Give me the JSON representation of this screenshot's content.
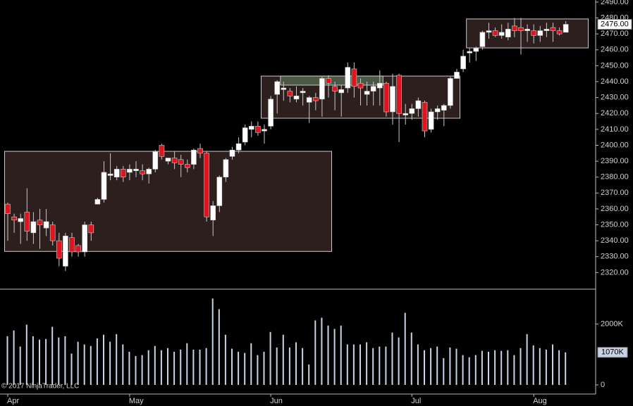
{
  "chart_data": {
    "type": "candlestick",
    "copyright": "© 2017 NinjaTrader, LLC",
    "categories": [
      "Apr",
      null,
      null,
      null,
      null,
      null,
      null,
      null,
      null,
      null,
      null,
      null,
      null,
      null,
      null,
      null,
      null,
      null,
      null,
      "May",
      null,
      null,
      null,
      null,
      null,
      null,
      null,
      null,
      null,
      null,
      null,
      null,
      null,
      null,
      null,
      null,
      null,
      null,
      null,
      null,
      null,
      "Jun",
      null,
      null,
      null,
      null,
      null,
      null,
      null,
      null,
      null,
      null,
      null,
      null,
      null,
      null,
      null,
      null,
      null,
      null,
      null,
      null,
      null,
      "Jul",
      null,
      null,
      null,
      null,
      null,
      null,
      null,
      null,
      null,
      null,
      null,
      null,
      null,
      null,
      null,
      null,
      null,
      null,
      "Aug",
      null,
      null,
      null,
      null,
      null
    ],
    "open": [
      2363,
      2355,
      2352,
      2358,
      2345,
      2353,
      2348,
      2350,
      2340,
      2324,
      2342,
      2337,
      2333,
      2350,
      2363,
      2366,
      2381,
      2380,
      2385,
      2383,
      2384,
      2384,
      2382,
      2385,
      2400,
      2390,
      2392,
      2391,
      2388,
      2388,
      2398,
      2395,
      2353,
      2362,
      2380,
      2393,
      2397,
      2402,
      2410,
      2412,
      2409,
      2412,
      2432,
      2435,
      2434,
      2429,
      2433,
      2427,
      2430,
      2429,
      2442,
      2437,
      2433,
      2436,
      2448,
      2439,
      2432,
      2434,
      2436,
      2439,
      2421,
      2444,
      2419,
      2420,
      2423,
      2427,
      2410,
      2421,
      2422,
      2425,
      2442,
      2448,
      2458,
      2459,
      2462,
      2471,
      2472,
      2469,
      2468,
      2475,
      2474,
      2472,
      2472,
      2469,
      2472,
      2474,
      2472,
      2471
    ],
    "high": [
      2364,
      2357,
      2357,
      2373,
      2358,
      2360,
      2360,
      2352,
      2345,
      2345,
      2345,
      2338,
      2352,
      2352,
      2367,
      2390,
      2395,
      2387,
      2387,
      2388,
      2390,
      2388,
      2386,
      2397,
      2401,
      2392,
      2396,
      2394,
      2391,
      2398,
      2401,
      2396,
      2365,
      2381,
      2392,
      2399,
      2405,
      2413,
      2415,
      2415,
      2413,
      2431,
      2441,
      2440,
      2436,
      2437,
      2436,
      2431,
      2433,
      2443,
      2444,
      2440,
      2438,
      2452,
      2452,
      2442,
      2440,
      2440,
      2447,
      2440,
      2445,
      2445,
      2426,
      2426,
      2430,
      2428,
      2423,
      2425,
      2426,
      2443,
      2448,
      2460,
      2461,
      2462,
      2472,
      2477,
      2474,
      2476,
      2477,
      2480,
      2480,
      2476,
      2476,
      2475,
      2477,
      2477,
      2474,
      2478
    ],
    "low": [
      2340,
      2345,
      2338,
      2340,
      2338,
      2335,
      2343,
      2337,
      2324,
      2321,
      2330,
      2330,
      2330,
      2340,
      2363,
      2364,
      2378,
      2378,
      2377,
      2378,
      2380,
      2378,
      2376,
      2383,
      2391,
      2388,
      2385,
      2380,
      2383,
      2385,
      2392,
      2352,
      2343,
      2358,
      2377,
      2391,
      2395,
      2400,
      2405,
      2406,
      2401,
      2410,
      2420,
      2428,
      2427,
      2427,
      2425,
      2414,
      2422,
      2418,
      2430,
      2422,
      2418,
      2433,
      2430,
      2425,
      2425,
      2425,
      2425,
      2418,
      2413,
      2402,
      2413,
      2416,
      2418,
      2405,
      2408,
      2416,
      2412,
      2423,
      2442,
      2446,
      2452,
      2453,
      2460,
      2467,
      2468,
      2467,
      2466,
      2468,
      2457,
      2465,
      2464,
      2465,
      2468,
      2465,
      2469,
      2471
    ],
    "close": [
      2357,
      2353,
      2354,
      2346,
      2352,
      2350,
      2352,
      2340,
      2329,
      2343,
      2333,
      2333,
      2350,
      2345,
      2366,
      2383,
      2382,
      2385,
      2380,
      2385,
      2385,
      2382,
      2385,
      2396,
      2393,
      2392,
      2389,
      2388,
      2386,
      2397,
      2395,
      2355,
      2362,
      2380,
      2391,
      2397,
      2401,
      2411,
      2412,
      2408,
      2410,
      2429,
      2440,
      2436,
      2431,
      2431,
      2434,
      2430,
      2428,
      2442,
      2439,
      2434,
      2435,
      2449,
      2437,
      2436,
      2434,
      2437,
      2439,
      2421,
      2437,
      2420,
      2420,
      2423,
      2428,
      2409,
      2421,
      2423,
      2425,
      2442,
      2446,
      2456,
      2459,
      2461,
      2471,
      2472,
      2469,
      2471,
      2473,
      2472,
      2472,
      2473,
      2469,
      2472,
      2473,
      2472,
      2470,
      2476
    ],
    "volume": [
      1600,
      1790,
      1260,
      1980,
      1600,
      1490,
      1510,
      1910,
      1560,
      1600,
      1030,
      1420,
      1330,
      1280,
      1530,
      1650,
      1420,
      1670,
      1330,
      1090,
      950,
      980,
      1140,
      1280,
      1140,
      1210,
      1090,
      1160,
      1370,
      1160,
      1160,
      1210,
      2840,
      2490,
      1650,
      1190,
      1090,
      1050,
      1370,
      980,
      1090,
      1740,
      1230,
      1650,
      1230,
      1400,
      1210,
      670,
      2120,
      2210,
      1950,
      1840,
      1950,
      1330,
      1330,
      1330,
      1400,
      1210,
      1260,
      1260,
      1720,
      1560,
      2370,
      1720,
      1330,
      1140,
      1210,
      1260,
      880,
      1230,
      1190,
      980,
      910,
      980,
      1120,
      1090,
      1140,
      1120,
      1140,
      980,
      1210,
      1670,
      1300,
      1210,
      1160,
      1330,
      1140,
      1070
    ],
    "last_price_label": "2476.00",
    "last_volume_label": "1070K",
    "up_color": "#ffffff",
    "down_color": "#e0141e",
    "wick_color": "#c8c8c8",
    "volume_color": "#c9d3e6",
    "ylim": [
      2310,
      2491.3
    ],
    "yticks": [
      {
        "value": 2320,
        "label": "2320.00"
      },
      {
        "value": 2330,
        "label": "2330.00"
      },
      {
        "value": 2340,
        "label": "2340.00"
      },
      {
        "value": 2350,
        "label": "2350.00"
      },
      {
        "value": 2360,
        "label": "2360.00"
      },
      {
        "value": 2370,
        "label": "2370.00"
      },
      {
        "value": 2380,
        "label": "2380.00"
      },
      {
        "value": 2390,
        "label": "2390.00"
      },
      {
        "value": 2400,
        "label": "2400.00"
      },
      {
        "value": 2410,
        "label": "2410.00"
      },
      {
        "value": 2420,
        "label": "2420.00"
      },
      {
        "value": 2430,
        "label": "2430.00"
      },
      {
        "value": 2440,
        "label": "2440.00"
      },
      {
        "value": 2450,
        "label": "2450.00"
      },
      {
        "value": 2460,
        "label": "2460.00"
      },
      {
        "value": 2470,
        "label": "2470.00"
      },
      {
        "value": 2480,
        "label": "2480.00"
      },
      {
        "value": 2490,
        "label": "2490.00"
      }
    ],
    "y2lim": [
      0,
      3100
    ],
    "y2ticks": [
      0,
      {
        "value": 2000,
        "label": "2000K"
      }
    ],
    "zones": [
      {
        "start": 0,
        "end": 50,
        "top": 2396.2,
        "bottom": 2333.3,
        "color": "#2e1f1f"
      },
      {
        "start": 40,
        "end": 70,
        "top": 2443.5,
        "bottom": 2417,
        "color": "#2e1f1f"
      },
      {
        "start": 72,
        "end": 90,
        "top": 2479.4,
        "bottom": 2461.2,
        "color": "#2e1f1f"
      },
      {
        "start": 43,
        "end": 58,
        "top": 2443.5,
        "bottom": 2437.8,
        "color": "#4b5846"
      }
    ]
  }
}
